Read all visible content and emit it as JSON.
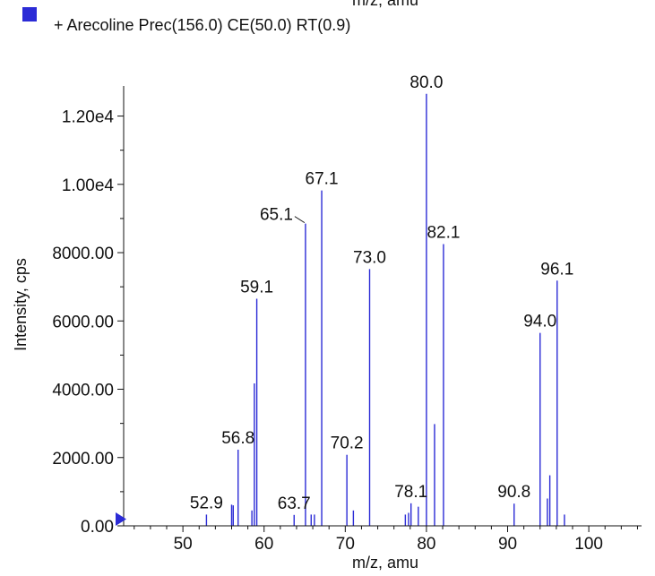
{
  "chart_data": {
    "type": "bar",
    "top_cut_label": "m/z, amu",
    "legend": {
      "label": "+ Arecoline Prec(156.0) CE(50.0) RT(0.9)",
      "color": "#2b2bd6"
    },
    "xlabel": "m/z, amu",
    "ylabel": "Intensity, cps",
    "xlim": [
      42.7,
      106.5
    ],
    "ylim": [
      0,
      12880
    ],
    "x_ticks": [
      {
        "value": 50,
        "label": "50"
      },
      {
        "value": 60,
        "label": "60"
      },
      {
        "value": 70,
        "label": "70"
      },
      {
        "value": 80,
        "label": "80"
      },
      {
        "value": 90,
        "label": "90"
      },
      {
        "value": 100,
        "label": "100"
      }
    ],
    "y_ticks": [
      {
        "value": 0,
        "label": "0.00"
      },
      {
        "value": 2000,
        "label": "2000.00"
      },
      {
        "value": 4000,
        "label": "4000.00"
      },
      {
        "value": 6000,
        "label": "6000.00"
      },
      {
        "value": 8000,
        "label": "8000.00"
      },
      {
        "value": 10000,
        "label": "1.00e4"
      },
      {
        "value": 12000,
        "label": "1.20e4"
      }
    ],
    "line_color": "#2b2bd6",
    "peaks": [
      {
        "x": 52.9,
        "y": 330
      },
      {
        "x": 56.0,
        "y": 620
      },
      {
        "x": 56.2,
        "y": 600
      },
      {
        "x": 56.8,
        "y": 2230
      },
      {
        "x": 58.5,
        "y": 450
      },
      {
        "x": 58.8,
        "y": 4170
      },
      {
        "x": 59.1,
        "y": 6650
      },
      {
        "x": 63.7,
        "y": 320
      },
      {
        "x": 65.1,
        "y": 8850
      },
      {
        "x": 65.8,
        "y": 330
      },
      {
        "x": 66.2,
        "y": 330
      },
      {
        "x": 67.1,
        "y": 9820
      },
      {
        "x": 70.2,
        "y": 2080
      },
      {
        "x": 71.0,
        "y": 450
      },
      {
        "x": 73.0,
        "y": 7520
      },
      {
        "x": 77.4,
        "y": 330
      },
      {
        "x": 77.8,
        "y": 380
      },
      {
        "x": 78.1,
        "y": 660
      },
      {
        "x": 79.0,
        "y": 560
      },
      {
        "x": 80.0,
        "y": 12650
      },
      {
        "x": 81.0,
        "y": 2980
      },
      {
        "x": 82.1,
        "y": 8250
      },
      {
        "x": 90.8,
        "y": 650
      },
      {
        "x": 94.0,
        "y": 5650
      },
      {
        "x": 94.9,
        "y": 800
      },
      {
        "x": 95.2,
        "y": 1480
      },
      {
        "x": 96.1,
        "y": 7180
      },
      {
        "x": 97.0,
        "y": 330
      }
    ],
    "peak_labels": [
      {
        "text": "52.9",
        "x": 52.9,
        "y": 330
      },
      {
        "text": "56.8",
        "x": 56.8,
        "y": 2230
      },
      {
        "text": "59.1",
        "x": 59.1,
        "y": 6650
      },
      {
        "text": "63.7",
        "x": 63.7,
        "y": 320
      },
      {
        "text": "65.1",
        "x": 65.1,
        "y": 8850,
        "leader": true
      },
      {
        "text": "67.1",
        "x": 67.1,
        "y": 9820
      },
      {
        "text": "70.2",
        "x": 70.2,
        "y": 2080
      },
      {
        "text": "73.0",
        "x": 73.0,
        "y": 7520
      },
      {
        "text": "78.1",
        "x": 78.1,
        "y": 660
      },
      {
        "text": "80.0",
        "x": 80.0,
        "y": 12650
      },
      {
        "text": "82.1",
        "x": 82.1,
        "y": 8250
      },
      {
        "text": "90.8",
        "x": 90.8,
        "y": 650
      },
      {
        "text": "94.0",
        "x": 94.0,
        "y": 5650
      },
      {
        "text": "96.1",
        "x": 96.1,
        "y": 7180
      }
    ]
  }
}
